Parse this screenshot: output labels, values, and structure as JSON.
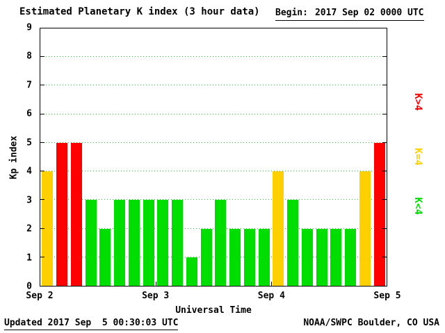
{
  "header": {
    "title": "Estimated Planetary K index (3 hour data)",
    "begin_label": "Begin:",
    "begin_value": "2017 Sep 02 0000 UTC"
  },
  "footer": {
    "updated": "Updated 2017 Sep  5 00:30:03 UTC",
    "source": "NOAA/SWPC Boulder, CO USA"
  },
  "chart_data": {
    "type": "bar",
    "title": "Estimated Planetary K index (3 hour data)",
    "xlabel": "Universal Time",
    "ylabel": "Kp index",
    "ylim": [
      0,
      9
    ],
    "y_ticks": [
      0,
      1,
      2,
      3,
      4,
      5,
      6,
      7,
      8,
      9
    ],
    "x_tick_labels": [
      "Sep 2",
      "Sep 3",
      "Sep 4",
      "Sep 5"
    ],
    "bin_hours": 3,
    "begin": "2017 Sep 02 0000 UTC",
    "values": [
      4,
      5,
      5,
      3,
      2,
      3,
      3,
      3,
      3,
      3,
      1,
      2,
      3,
      2,
      2,
      2,
      4,
      3,
      2,
      2,
      2,
      2,
      4,
      5
    ],
    "colors": {
      "low": "#00dd00",
      "mid": "#ffd000",
      "high": "#ff0000",
      "grid": "#55aa55"
    },
    "legend": [
      {
        "label": "K>4",
        "color": "#ff0000"
      },
      {
        "label": "K=4",
        "color": "#ffd000"
      },
      {
        "label": "K<4",
        "color": "#00dd00"
      }
    ],
    "grid": true,
    "legend_position": "right"
  }
}
